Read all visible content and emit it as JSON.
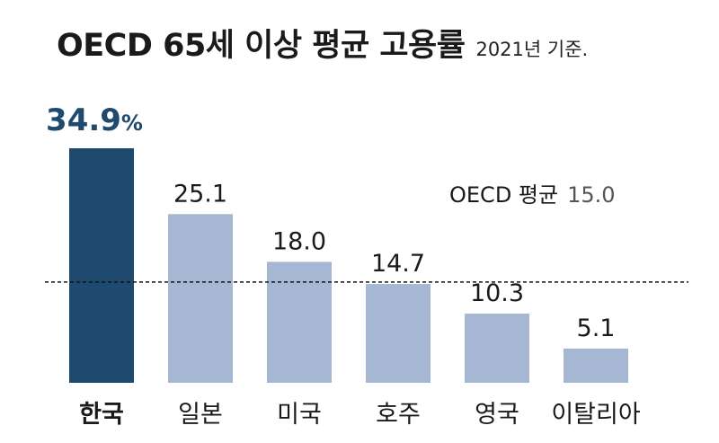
{
  "chart_data": {
    "type": "bar",
    "title": "OECD 65세 이상 평균 고용률",
    "subtitle": "2021년 기준.",
    "categories": [
      "한국",
      "일본",
      "미국",
      "호주",
      "영국",
      "이탈리아"
    ],
    "values": [
      34.9,
      25.1,
      18.0,
      14.7,
      10.3,
      5.1
    ],
    "value_labels": [
      "34.9",
      "25.1",
      "18.0",
      "14.7",
      "10.3",
      "5.1"
    ],
    "unit": "%",
    "highlight_index": 0,
    "reference_line": {
      "label": "OECD 평균",
      "value": 15.0,
      "value_label": "15.0"
    },
    "ylim": [
      0,
      34.9
    ],
    "grid": false,
    "colors": {
      "highlight_bar": "#1d4a6e",
      "bar": "#a5b7d3",
      "highlight_label": "#1d4a6e",
      "reference_value": "#555555",
      "text": "#1a1a1a"
    }
  }
}
